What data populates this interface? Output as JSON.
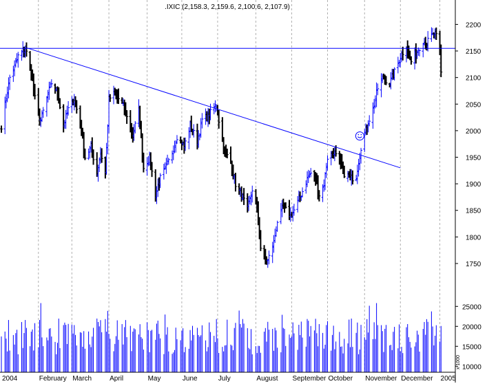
{
  "chart_data": {
    "type": "ohlc",
    "title": ".IXIC (2,158.3, 2,159.6, 2,100.6, 2,107.9)",
    "price_axis": {
      "ylim": [
        1715,
        2220
      ],
      "ticks": [
        1750,
        1800,
        1850,
        1900,
        1950,
        2000,
        2050,
        2100,
        2150,
        2200
      ]
    },
    "volume_axis": {
      "ylim": [
        8500,
        28500
      ],
      "ticks": [
        10000,
        15000,
        20000,
        25000
      ],
      "multiplier_label": "x 1000"
    },
    "x_range": [
      "2004-01-02",
      "2005-01-05"
    ],
    "month_labels": [
      {
        "date": "2004-01-02",
        "label": "2004"
      },
      {
        "date": "2004-02-02",
        "label": "February"
      },
      {
        "date": "2004-03-01",
        "label": "March"
      },
      {
        "date": "2004-04-01",
        "label": "April"
      },
      {
        "date": "2004-05-03",
        "label": "May"
      },
      {
        "date": "2004-06-01",
        "label": "June"
      },
      {
        "date": "2004-07-01",
        "label": "July"
      },
      {
        "date": "2004-08-02",
        "label": "August"
      },
      {
        "date": "2004-09-01",
        "label": "September"
      },
      {
        "date": "2004-10-01",
        "label": "October"
      },
      {
        "date": "2004-11-01",
        "label": "November"
      },
      {
        "date": "2004-12-01",
        "label": "December"
      },
      {
        "date": "2005-01-03",
        "label": "2005"
      }
    ],
    "price_path": [
      [
        "2004-01-02",
        2010
      ],
      [
        "2004-01-06",
        2060
      ],
      [
        "2004-01-09",
        2100
      ],
      [
        "2004-01-13",
        2120
      ],
      [
        "2004-01-16",
        2140
      ],
      [
        "2004-01-22",
        2156
      ],
      [
        "2004-01-27",
        2110
      ],
      [
        "2004-01-30",
        2060
      ],
      [
        "2004-02-04",
        2020
      ],
      [
        "2004-02-09",
        2060
      ],
      [
        "2004-02-13",
        2090
      ],
      [
        "2004-02-18",
        2070
      ],
      [
        "2004-02-23",
        2010
      ],
      [
        "2004-02-27",
        2040
      ],
      [
        "2004-03-03",
        2060
      ],
      [
        "2004-03-09",
        2000
      ],
      [
        "2004-03-12",
        1950
      ],
      [
        "2004-03-17",
        1970
      ],
      [
        "2004-03-22",
        1920
      ],
      [
        "2004-03-25",
        1960
      ],
      [
        "2004-03-29",
        1920
      ],
      [
        "2004-04-01",
        2060
      ],
      [
        "2004-04-06",
        2070
      ],
      [
        "2004-04-12",
        2050
      ],
      [
        "2004-04-16",
        2030
      ],
      [
        "2004-04-21",
        1990
      ],
      [
        "2004-04-26",
        2040
      ],
      [
        "2004-04-30",
        1930
      ],
      [
        "2004-05-05",
        1950
      ],
      [
        "2004-05-10",
        1880
      ],
      [
        "2004-05-14",
        1910
      ],
      [
        "2004-05-19",
        1930
      ],
      [
        "2004-05-24",
        1960
      ],
      [
        "2004-05-28",
        1990
      ],
      [
        "2004-06-03",
        1970
      ],
      [
        "2004-06-08",
        2010
      ],
      [
        "2004-06-14",
        1980
      ],
      [
        "2004-06-18",
        2020
      ],
      [
        "2004-06-24",
        2030
      ],
      [
        "2004-06-30",
        2050
      ],
      [
        "2004-07-02",
        2020
      ],
      [
        "2004-07-07",
        1960
      ],
      [
        "2004-07-12",
        1940
      ],
      [
        "2004-07-16",
        1900
      ],
      [
        "2004-07-21",
        1880
      ],
      [
        "2004-07-26",
        1850
      ],
      [
        "2004-07-30",
        1890
      ],
      [
        "2004-08-03",
        1850
      ],
      [
        "2004-08-06",
        1780
      ],
      [
        "2004-08-10",
        1760
      ],
      [
        "2004-08-12",
        1755
      ],
      [
        "2004-08-17",
        1790
      ],
      [
        "2004-08-20",
        1830
      ],
      [
        "2004-08-25",
        1855
      ],
      [
        "2004-08-31",
        1840
      ],
      [
        "2004-09-03",
        1850
      ],
      [
        "2004-09-09",
        1880
      ],
      [
        "2004-09-14",
        1910
      ],
      [
        "2004-09-17",
        1920
      ],
      [
        "2004-09-21",
        1910
      ],
      [
        "2004-09-24",
        1880
      ],
      [
        "2004-09-28",
        1900
      ],
      [
        "2004-10-01",
        1950
      ],
      [
        "2004-10-06",
        1960
      ],
      [
        "2004-10-11",
        1940
      ],
      [
        "2004-10-15",
        1920
      ],
      [
        "2004-10-20",
        1910
      ],
      [
        "2004-10-25",
        1915
      ],
      [
        "2004-10-29",
        1970
      ],
      [
        "2004-11-03",
        2010
      ],
      [
        "2004-11-08",
        2040
      ],
      [
        "2004-11-12",
        2080
      ],
      [
        "2004-11-17",
        2100
      ],
      [
        "2004-11-22",
        2090
      ],
      [
        "2004-11-26",
        2110
      ],
      [
        "2004-12-01",
        2140
      ],
      [
        "2004-12-06",
        2160
      ],
      [
        "2004-12-10",
        2130
      ],
      [
        "2004-12-15",
        2150
      ],
      [
        "2004-12-20",
        2170
      ],
      [
        "2004-12-23",
        2165
      ],
      [
        "2004-12-28",
        2180
      ],
      [
        "2004-12-30",
        2185
      ],
      [
        "2005-01-03",
        2150
      ],
      [
        "2005-01-04",
        2108
      ]
    ],
    "annotations": {
      "horizontal_line": {
        "value": 2155
      },
      "trend_line": {
        "from": [
          "2004-01-23",
          2156
        ],
        "to": [
          "2004-12-01",
          1930
        ]
      },
      "marker": {
        "date": "2004-10-28",
        "value": 1990
      }
    },
    "colors": {
      "up": "#0000ff",
      "down": "#000000",
      "volume": "#0000ff",
      "lines": "#0000ff",
      "grid": "#b0b0b0",
      "axis": "#000000"
    },
    "grid": true
  }
}
